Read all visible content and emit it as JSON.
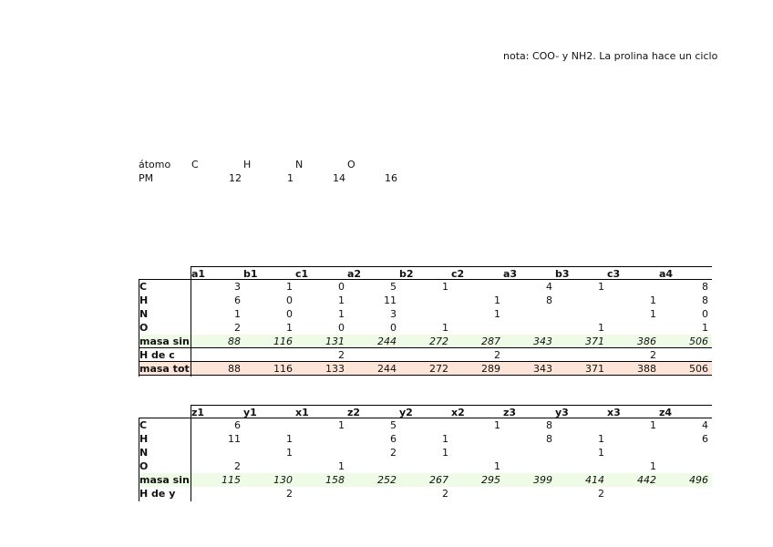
{
  "note": "nota: COO- y NH2. La prolina hace un ciclo",
  "atoms": {
    "header": [
      "átomo",
      "C",
      "H",
      "N",
      "O"
    ],
    "pm_label": "PM",
    "pm": [
      12,
      1,
      14,
      16
    ]
  },
  "table1": {
    "headers": [
      "a1",
      "b1",
      "c1",
      "a2",
      "b2",
      "c2",
      "a3",
      "b3",
      "c3",
      "a4"
    ],
    "rows": [
      {
        "label": "C",
        "cells": [
          3,
          1,
          0,
          5,
          1,
          null,
          4,
          1,
          null,
          8
        ]
      },
      {
        "label": "H",
        "cells": [
          6,
          0,
          1,
          11,
          null,
          1,
          8,
          null,
          1,
          8
        ]
      },
      {
        "label": "N",
        "cells": [
          1,
          0,
          1,
          3,
          null,
          1,
          null,
          null,
          1,
          0
        ]
      },
      {
        "label": "O",
        "cells": [
          2,
          1,
          0,
          0,
          1,
          null,
          null,
          1,
          null,
          1
        ]
      },
      {
        "label": "masa sin",
        "cells": [
          88,
          116,
          131,
          244,
          272,
          287,
          343,
          371,
          386,
          506
        ]
      },
      {
        "label": "H de c",
        "cells": [
          null,
          null,
          2,
          null,
          null,
          2,
          null,
          null,
          2,
          null
        ]
      },
      {
        "label": "masa tot",
        "cells": [
          88,
          116,
          133,
          244,
          272,
          289,
          343,
          371,
          388,
          506
        ]
      }
    ]
  },
  "table2": {
    "headers": [
      "z1",
      "y1",
      "x1",
      "z2",
      "y2",
      "x2",
      "z3",
      "y3",
      "x3",
      "z4"
    ],
    "rows": [
      {
        "label": "C",
        "cells": [
          6,
          null,
          1,
          5,
          null,
          1,
          8,
          null,
          1,
          4
        ]
      },
      {
        "label": "H",
        "cells": [
          11,
          1,
          null,
          6,
          1,
          null,
          8,
          1,
          null,
          6
        ]
      },
      {
        "label": "N",
        "cells": [
          null,
          1,
          null,
          2,
          1,
          null,
          null,
          1,
          null,
          null
        ]
      },
      {
        "label": "O",
        "cells": [
          2,
          null,
          1,
          null,
          null,
          1,
          null,
          null,
          1,
          null
        ]
      },
      {
        "label": "masa sin",
        "cells": [
          115,
          130,
          158,
          252,
          267,
          295,
          399,
          414,
          442,
          496
        ]
      },
      {
        "label": "H de y",
        "cells": [
          null,
          2,
          null,
          null,
          2,
          null,
          null,
          2,
          null,
          null
        ]
      }
    ]
  }
}
